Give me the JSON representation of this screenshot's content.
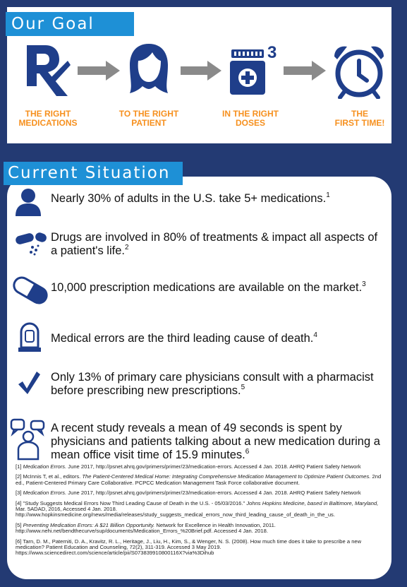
{
  "goal": {
    "title": "Our Goal",
    "steps": [
      {
        "icon": "rx-icon",
        "label_line1": "THE RIGHT",
        "label_line2": "MEDICATIONS"
      },
      {
        "icon": "patient-head-icon",
        "label_line1": "TO THE RIGHT",
        "label_line2": "PATIENT"
      },
      {
        "icon": "pill-bottle-icon",
        "label_line1": "IN THE RIGHT",
        "label_line2": "DOSES",
        "superscript": "3"
      },
      {
        "icon": "alarm-clock-icon",
        "label_line1": "THE",
        "label_line2": "FIRST TIME!"
      }
    ]
  },
  "situation": {
    "title": "Current Situation",
    "items": [
      {
        "icon": "person-icon",
        "text": "Nearly 30% of adults in the U.S. take 5+ medications.",
        "ref": "1"
      },
      {
        "icon": "pills-icon",
        "text": "Drugs are involved in 80% of treatments & impact all aspects of a patient's life.",
        "ref": "2"
      },
      {
        "icon": "capsule-icon",
        "text": "10,000 prescription medications are available on the market.",
        "ref": "3"
      },
      {
        "icon": "tombstone-icon",
        "text": "Medical errors are the third leading cause of death.",
        "ref": "4"
      },
      {
        "icon": "checkmark-icon",
        "text": "Only 13% of primary care physicians consult with a pharmacist before prescribing new prescriptions.",
        "ref": "5"
      },
      {
        "icon": "speech-person-icon",
        "text": "A recent study reveals a mean of 49 seconds is spent by physicians and patients talking about a new medication during a mean office visit time of 15.9 minutes.",
        "ref": "6"
      }
    ]
  },
  "references": [
    {
      "pre": "[1] ",
      "ital": "Medication Errors.",
      "post": " June 2017, http://psnet.ahrq.gov/primers/primer/23/medication-errors. Accessed 4 Jan. 2018. AHRQ Patient Safety Network"
    },
    {
      "pre": "[2] McInnis T, et al., editors. ",
      "ital": "The Patient-Centered Medical Home: Integrating Comprehensive Medication Management to Optimize Patient Outcomes.",
      "post": " 2nd ed., Patient-Centered Primary Care Collaborative. PCPCC Medication Management Task Force collaborative document."
    },
    {
      "pre": "[3] ",
      "ital": "Medication Errors.",
      "post": " June 2017, http://psnet.ahrq.gov/primers/primer/23/medication-errors. Accessed 4 Jan. 2018. AHRQ Patient Safety Network"
    },
    {
      "pre": "[4] \"Study Suggests Medical Errors Now Third Leading Cause of Death in the U.S. - 05/03/2016.\" ",
      "ital": "Johns Hopkins Medicine, based in Baltimore, Maryland,",
      "post": " Mar. 5ADAD, 2016, Accessed 4 Jan. 2018. http://www.hopkinsmedicine.org/news/media/releases/study_suggests_medical_errors_now_third_leading_cause_of_death_in_the_us."
    },
    {
      "pre": "[5] ",
      "ital": "Preventing Medication Errors: A $21 Billion Opportunity.",
      "post": " Network for Excellence in Health Innovation, 2011. http://www.nehi.net/bendthecurve/sup/documents/Medication_Errors_%20Brief.pdf. Accessed 4 Jan. 2018."
    },
    {
      "pre": "[6] Tarn, D. M., Paterniti, D. A., Kravitz, R. L., Heritage, J., Liu, H., Kim, S., & Wenger, N. S. (2008). How much time does it take to prescribe a new medication? Patient Education and Counseling, 72(2), 311-319. Accessed 3 May 2019. https://www.sciencedirect.com/science/article/pii/S073839910800116X?via%3Dihub",
      "ital": "",
      "post": ""
    }
  ],
  "colors": {
    "navy": "#233a73",
    "accent_blue": "#1e90d6",
    "orange": "#f6901e",
    "icon_blue": "#1f3e8a",
    "arrow_gray": "#8a8a8a"
  }
}
